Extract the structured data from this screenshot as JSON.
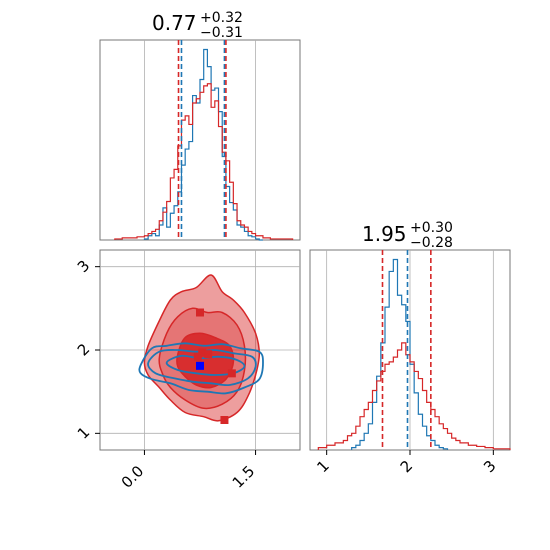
{
  "chart_data": [
    {
      "type": "histogram",
      "panel": "marginal-param-1",
      "title": {
        "value": "0.77",
        "plus": "+0.32",
        "minus": "−0.31"
      },
      "xlim": [
        -0.6,
        2.1
      ],
      "x_ticks": [
        0.0,
        1.5
      ],
      "grid": true,
      "series": [
        {
          "color": "#1f77b4",
          "edges": [
            0.0,
            0.05,
            0.1,
            0.15,
            0.2,
            0.25,
            0.3,
            0.35,
            0.4,
            0.45,
            0.5,
            0.55,
            0.6,
            0.65,
            0.7,
            0.75,
            0.8,
            0.85,
            0.9,
            0.95,
            1.0,
            1.05,
            1.1,
            1.15,
            1.2,
            1.25,
            1.3,
            1.35,
            1.4,
            1.45,
            1.5,
            1.55,
            1.6
          ],
          "counts": [
            1,
            4,
            6,
            4,
            14,
            30,
            12,
            25,
            32,
            45,
            70,
            85,
            92,
            135,
            128,
            150,
            178,
            162,
            140,
            142,
            120,
            78,
            50,
            35,
            28,
            14,
            12,
            8,
            4,
            3,
            1,
            0
          ]
        },
        {
          "color": "#d62728",
          "edges": [
            -0.4,
            -0.3,
            -0.2,
            -0.1,
            0.0,
            0.05,
            0.1,
            0.15,
            0.2,
            0.25,
            0.3,
            0.35,
            0.4,
            0.45,
            0.5,
            0.55,
            0.6,
            0.65,
            0.7,
            0.75,
            0.8,
            0.85,
            0.9,
            0.95,
            1.0,
            1.05,
            1.1,
            1.15,
            1.2,
            1.25,
            1.3,
            1.35,
            1.4,
            1.45,
            1.5,
            1.55,
            1.6,
            1.7,
            1.8,
            2.0
          ],
          "counts": [
            1,
            2,
            2,
            3,
            4,
            6,
            8,
            10,
            18,
            26,
            36,
            58,
            66,
            88,
            112,
            116,
            108,
            128,
            132,
            138,
            144,
            146,
            124,
            130,
            106,
            82,
            74,
            54,
            34,
            18,
            14,
            12,
            8,
            6,
            4,
            4,
            2,
            1,
            1
          ]
        }
      ],
      "vlines": [
        {
          "x": 0.46,
          "color": "#d62728"
        },
        {
          "x": 0.5,
          "color": "#1f77b4"
        },
        {
          "x": 1.08,
          "color": "#1f77b4"
        },
        {
          "x": 1.1,
          "color": "#d62728"
        }
      ]
    },
    {
      "type": "histogram",
      "panel": "marginal-param-2",
      "title": {
        "value": "1.95",
        "plus": "+0.30",
        "minus": "−0.28"
      },
      "xlim": [
        0.8,
        3.2
      ],
      "x_ticks": [
        1,
        2,
        3
      ],
      "grid": true,
      "series": [
        {
          "color": "#1f77b4",
          "edges": [
            1.3,
            1.35,
            1.4,
            1.45,
            1.5,
            1.55,
            1.6,
            1.65,
            1.7,
            1.75,
            1.8,
            1.85,
            1.9,
            1.95,
            2.0,
            2.05,
            2.1,
            2.15,
            2.2,
            2.25,
            2.3,
            2.35,
            2.4,
            2.45
          ],
          "counts": [
            2,
            4,
            8,
            14,
            22,
            40,
            62,
            90,
            120,
            150,
            160,
            130,
            122,
            108,
            72,
            48,
            30,
            20,
            12,
            8,
            4,
            2,
            1
          ]
        },
        {
          "color": "#d62728",
          "edges": [
            0.9,
            1.0,
            1.1,
            1.2,
            1.25,
            1.3,
            1.35,
            1.4,
            1.45,
            1.5,
            1.55,
            1.6,
            1.65,
            1.7,
            1.75,
            1.8,
            1.85,
            1.9,
            1.95,
            2.0,
            2.05,
            2.1,
            2.15,
            2.2,
            2.25,
            2.3,
            2.35,
            2.4,
            2.45,
            2.5,
            2.55,
            2.6,
            2.7,
            2.8,
            2.9,
            3.0,
            3.2
          ],
          "counts": [
            2,
            4,
            6,
            8,
            12,
            14,
            20,
            28,
            34,
            40,
            50,
            58,
            66,
            72,
            74,
            78,
            84,
            90,
            80,
            74,
            66,
            60,
            50,
            40,
            34,
            28,
            22,
            18,
            14,
            10,
            8,
            6,
            4,
            3,
            2,
            1
          ]
        }
      ],
      "vlines": [
        {
          "x": 1.67,
          "color": "#d62728"
        },
        {
          "x": 1.97,
          "color": "#1f77b4"
        },
        {
          "x": 2.25,
          "color": "#d62728"
        }
      ]
    },
    {
      "type": "contour",
      "panel": "joint-param1-param2",
      "xlim": [
        -0.6,
        2.1
      ],
      "ylim": [
        0.8,
        3.2
      ],
      "x_ticks": [
        0.0,
        1.5
      ],
      "y_ticks": [
        1,
        2,
        3
      ],
      "grid": true,
      "filled_contours": [
        {
          "color": "#d62728",
          "fill_opacity": 0.45,
          "points": [
            [
              0.0,
              1.85
            ],
            [
              0.05,
              2.05
            ],
            [
              0.2,
              2.35
            ],
            [
              0.35,
              2.6
            ],
            [
              0.5,
              2.7
            ],
            [
              0.7,
              2.75
            ],
            [
              0.9,
              2.9
            ],
            [
              1.05,
              2.7
            ],
            [
              1.2,
              2.6
            ],
            [
              1.35,
              2.45
            ],
            [
              1.5,
              2.2
            ],
            [
              1.55,
              1.95
            ],
            [
              1.5,
              1.7
            ],
            [
              1.4,
              1.45
            ],
            [
              1.25,
              1.25
            ],
            [
              1.0,
              1.15
            ],
            [
              0.8,
              1.2
            ],
            [
              0.55,
              1.25
            ],
            [
              0.35,
              1.4
            ],
            [
              0.2,
              1.55
            ],
            [
              0.05,
              1.7
            ]
          ]
        },
        {
          "color": "#d62728",
          "fill_opacity": 0.35,
          "points": [
            [
              0.2,
              1.9
            ],
            [
              0.3,
              2.2
            ],
            [
              0.45,
              2.4
            ],
            [
              0.65,
              2.5
            ],
            [
              0.85,
              2.45
            ],
            [
              1.05,
              2.45
            ],
            [
              1.25,
              2.3
            ],
            [
              1.35,
              2.05
            ],
            [
              1.35,
              1.75
            ],
            [
              1.25,
              1.5
            ],
            [
              1.05,
              1.35
            ],
            [
              0.8,
              1.3
            ],
            [
              0.55,
              1.4
            ],
            [
              0.35,
              1.55
            ],
            [
              0.25,
              1.7
            ]
          ]
        },
        {
          "color": "#d62728",
          "fill_opacity": 0.9,
          "points": [
            [
              0.45,
              1.95
            ],
            [
              0.55,
              2.15
            ],
            [
              0.75,
              2.2
            ],
            [
              0.95,
              2.15
            ],
            [
              1.15,
              2.05
            ],
            [
              1.2,
              1.85
            ],
            [
              1.1,
              1.65
            ],
            [
              0.9,
              1.55
            ],
            [
              0.7,
              1.58
            ],
            [
              0.55,
              1.68
            ],
            [
              0.45,
              1.8
            ]
          ]
        }
      ],
      "line_contours": [
        {
          "color": "#1f77b4",
          "points": [
            [
              -0.05,
              1.82
            ],
            [
              0.1,
              2.02
            ],
            [
              0.3,
              2.05
            ],
            [
              0.55,
              2.08
            ],
            [
              0.8,
              2.05
            ],
            [
              1.05,
              2.07
            ],
            [
              1.3,
              2.02
            ],
            [
              1.55,
              1.98
            ],
            [
              1.6,
              1.85
            ],
            [
              1.55,
              1.65
            ],
            [
              1.35,
              1.55
            ],
            [
              1.1,
              1.48
            ],
            [
              0.85,
              1.5
            ],
            [
              0.6,
              1.52
            ],
            [
              0.35,
              1.6
            ],
            [
              0.1,
              1.65
            ],
            [
              -0.05,
              1.72
            ]
          ]
        },
        {
          "color": "#1f77b4",
          "points": [
            [
              0.05,
              1.84
            ],
            [
              0.2,
              1.98
            ],
            [
              0.45,
              2.0
            ],
            [
              0.7,
              1.98
            ],
            [
              0.95,
              2.0
            ],
            [
              1.2,
              1.96
            ],
            [
              1.45,
              1.92
            ],
            [
              1.5,
              1.8
            ],
            [
              1.4,
              1.66
            ],
            [
              1.15,
              1.58
            ],
            [
              0.9,
              1.6
            ],
            [
              0.65,
              1.62
            ],
            [
              0.4,
              1.66
            ],
            [
              0.15,
              1.72
            ]
          ]
        },
        {
          "color": "#1f77b4",
          "points": [
            [
              0.3,
              1.85
            ],
            [
              0.5,
              1.93
            ],
            [
              0.75,
              1.9
            ],
            [
              1.0,
              1.92
            ],
            [
              1.25,
              1.88
            ],
            [
              1.35,
              1.8
            ],
            [
              1.2,
              1.72
            ],
            [
              0.95,
              1.7
            ],
            [
              0.7,
              1.72
            ],
            [
              0.45,
              1.76
            ]
          ]
        }
      ],
      "scatter": [
        {
          "color": "#d62728",
          "x": 0.75,
          "y": 2.45
        },
        {
          "color": "#d62728",
          "x": 0.78,
          "y": 1.97
        },
        {
          "color": "#d62728",
          "x": 0.86,
          "y": 1.95
        },
        {
          "color": "#d62728",
          "x": 0.72,
          "y": 1.92
        },
        {
          "color": "#d62728",
          "x": 1.18,
          "y": 1.72
        },
        {
          "color": "#d62728",
          "x": 1.08,
          "y": 1.16
        },
        {
          "color": "#0000ff",
          "x": 0.75,
          "y": 1.81
        }
      ]
    }
  ]
}
